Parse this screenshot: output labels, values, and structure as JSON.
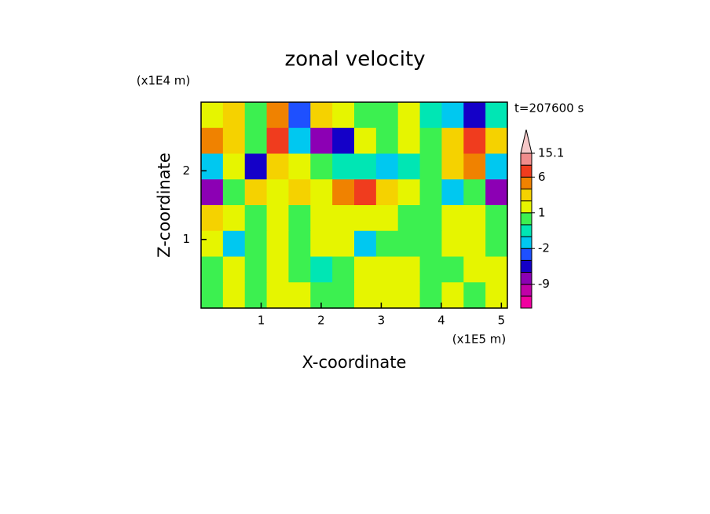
{
  "chart_data": {
    "type": "contour",
    "title": "zonal velocity",
    "time_label": "t=207600 s",
    "xlabel": "X-coordinate",
    "ylabel": "Z-coordinate",
    "x_unit": "(x1E5 m)",
    "y_unit": "(x1E4 m)",
    "xlim": [
      0,
      5.1
    ],
    "ylim": [
      0,
      3
    ],
    "xticks": [
      1,
      2,
      3,
      4,
      5
    ],
    "yticks": [
      1,
      2
    ],
    "z": [
      [
        1.5,
        3,
        0.5,
        5,
        -2.5,
        3,
        1.5,
        0.5,
        0.5,
        1.5,
        -0.5,
        -1.5,
        -4,
        -0.5
      ],
      [
        5,
        3,
        0.5,
        7,
        -1.5,
        -7,
        -4,
        1.5,
        0.5,
        1.5,
        0.5,
        3,
        7,
        3
      ],
      [
        -1.5,
        1.5,
        -4,
        3,
        1.5,
        0.5,
        -0.5,
        -0.5,
        -1.5,
        -0.5,
        0.5,
        3,
        5,
        -1.5
      ],
      [
        -7,
        0.5,
        3,
        1.5,
        3,
        1.5,
        5,
        7,
        3,
        1.5,
        0.5,
        -1.5,
        0.5,
        -7
      ],
      [
        3,
        1.5,
        0.5,
        1.5,
        0.5,
        1.5,
        1.5,
        1.5,
        1.5,
        0.5,
        0.5,
        1.5,
        1.5,
        0.5
      ],
      [
        1.5,
        -1.5,
        0.5,
        1.5,
        0.5,
        1.5,
        1.5,
        -1.5,
        0.5,
        0.5,
        0.5,
        1.5,
        1.5,
        0.5
      ],
      [
        0.5,
        1.5,
        0.5,
        1.5,
        0.5,
        -0.5,
        0.5,
        1.5,
        1.5,
        1.5,
        0.5,
        0.5,
        1.5,
        1.5
      ],
      [
        0.5,
        1.5,
        0.5,
        1.5,
        1.5,
        0.5,
        0.5,
        1.5,
        1.5,
        1.5,
        0.5,
        1.5,
        0.5,
        1.5
      ]
    ],
    "levels": [
      -12,
      -9,
      -6,
      -3,
      -2,
      -1,
      0,
      1,
      2,
      4,
      6,
      10,
      15.1
    ],
    "colors": [
      "#f000a0",
      "#c000a8",
      "#8c00b4",
      "#1400c8",
      "#1e50ff",
      "#00c8f0",
      "#00e6b4",
      "#3cf050",
      "#e6f500",
      "#f5d200",
      "#f08200",
      "#f03c1e",
      "#f08c8c",
      "#f5c8c8"
    ],
    "cbar_ticks": [
      -9,
      -2,
      1,
      6,
      15.1
    ]
  }
}
